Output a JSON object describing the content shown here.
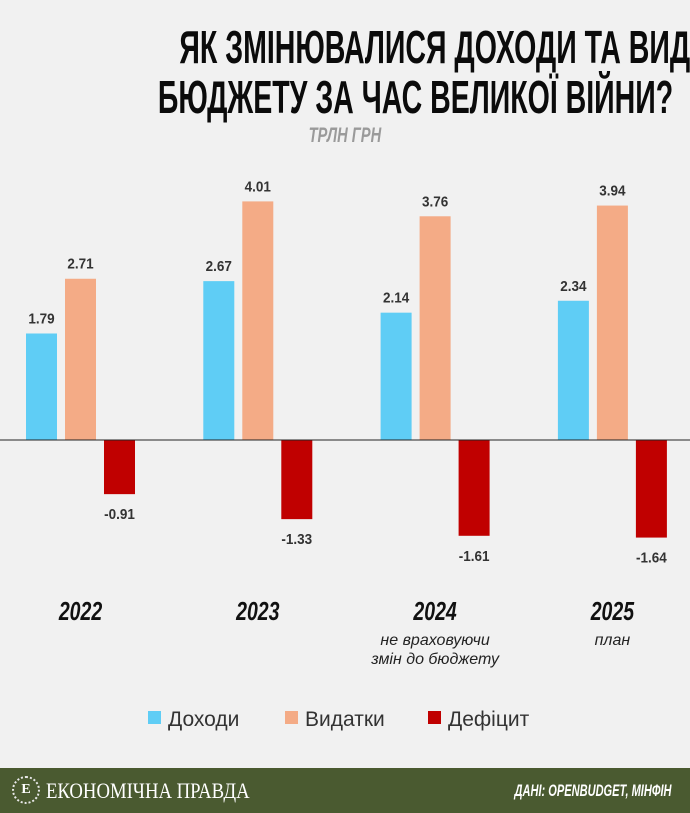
{
  "title_line1": "ЯК ЗМІНЮВАЛИСЯ ДОХОДИ ТА ВИДАТКИ",
  "title_line2": "БЮДЖЕТУ ЗА ЧАС ВЕЛИКОЇ ВІЙНИ?",
  "footer": {
    "brand": "ЕКОНОМІЧНА ПРАВДА",
    "logo_letter": "Е",
    "source": "ДАНІ: OPENBUDGET, МІНФІН"
  },
  "chart_data": {
    "type": "bar",
    "unit": "ТРЛН ГРН",
    "categories": [
      "2022",
      "2023",
      "2024",
      "2025"
    ],
    "notes": [
      "",
      "",
      "не враховуючи змін до бюджету",
      "план"
    ],
    "series": [
      {
        "name": "Доходи",
        "color": "#5fcdf5",
        "values": [
          1.79,
          2.67,
          2.14,
          2.34
        ],
        "labels": [
          "1.79",
          "2.67",
          "2.14",
          "2.34"
        ]
      },
      {
        "name": "Видатки",
        "color": "#f4ab86",
        "values": [
          2.71,
          4.01,
          3.76,
          3.94
        ],
        "labels": [
          "2.71",
          "4.01",
          "3.76",
          "3.94"
        ]
      },
      {
        "name": "Дефіцит",
        "color": "#c00000",
        "values": [
          -0.91,
          -1.33,
          -1.61,
          -1.64
        ],
        "labels": [
          "-0.91",
          "-1.33",
          "-1.61",
          "-1.64"
        ]
      }
    ],
    "legend": "bottom-center",
    "grid": false
  }
}
